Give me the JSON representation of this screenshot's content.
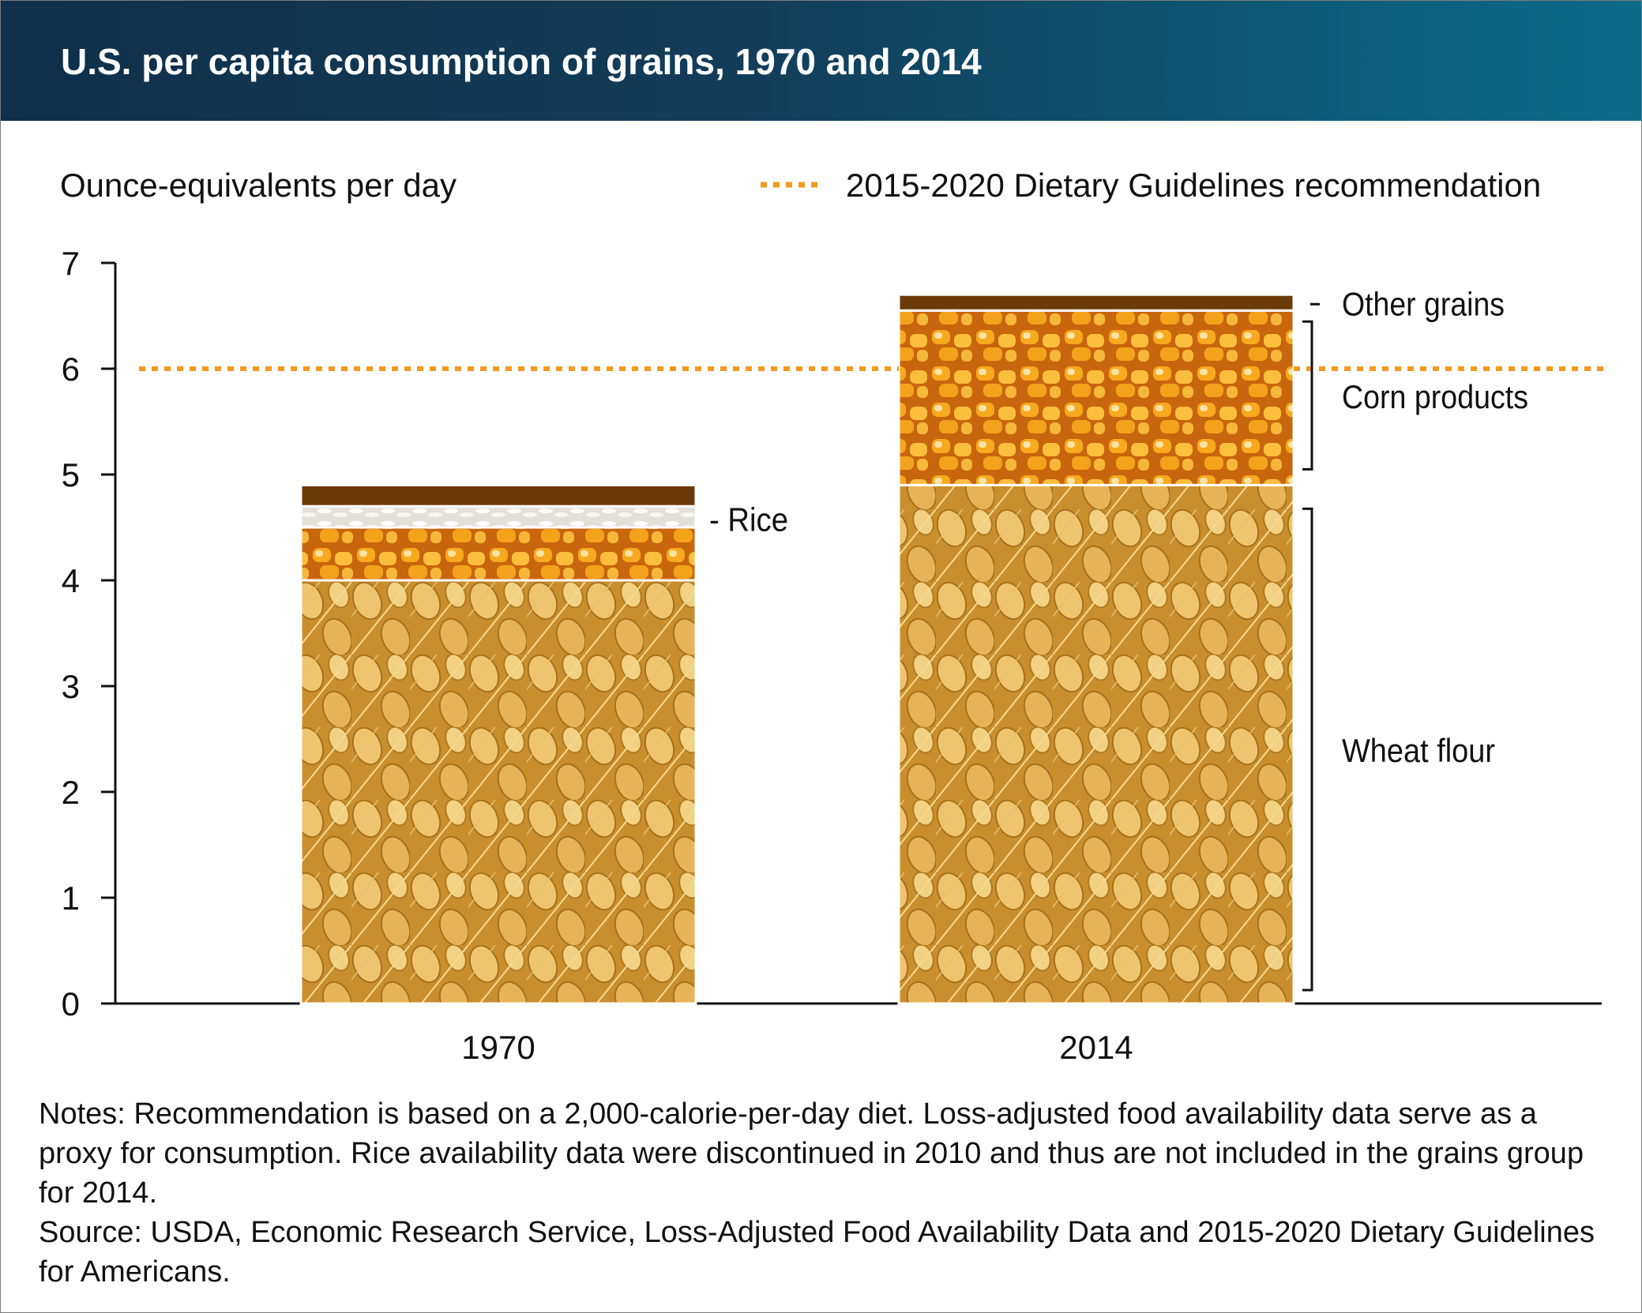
{
  "header": {
    "title": "U.S. per capita consumption of grains, 1970 and 2014"
  },
  "chart_data": {
    "type": "bar",
    "stacked": true,
    "title": "U.S. per capita consumption of grains, 1970 and 2014",
    "ylabel": "Ounce-equivalents per day",
    "xlabel": "",
    "ylim": [
      0,
      7
    ],
    "yticks": [
      "0",
      "1",
      "2",
      "3",
      "4",
      "5",
      "6",
      "7"
    ],
    "grid": false,
    "categories": [
      "1970",
      "2014"
    ],
    "series": [
      {
        "name": "Wheat flour",
        "values": [
          4.0,
          4.9
        ]
      },
      {
        "name": "Corn products",
        "values": [
          0.5,
          1.65
        ]
      },
      {
        "name": "Rice",
        "values": [
          0.2,
          0
        ]
      },
      {
        "name": "Other grains",
        "values": [
          0.2,
          0.15
        ]
      }
    ],
    "reference_line": {
      "label": "2015-2020 Dietary Guidelines recommendation",
      "value": 6,
      "color": "#f39a1f"
    },
    "colors": {
      "Wheat flour": "#d9a642",
      "Corn products": "#f2a21e",
      "Rice": "#f1efea",
      "Other grains": "#6b3a08"
    }
  },
  "notes": {
    "notes_text": "Notes: Recommendation is based on a 2,000-calorie-per-day diet. Loss-adjusted food availability data serve as a proxy for consumption. Rice availability data were discontinued in 2010 and thus are not included in the grains group for 2014.",
    "source_text": "Source: USDA, Economic Research Service, Loss-Adjusted Food Availability Data and 2015-2020 Dietary Guidelines for Americans."
  }
}
